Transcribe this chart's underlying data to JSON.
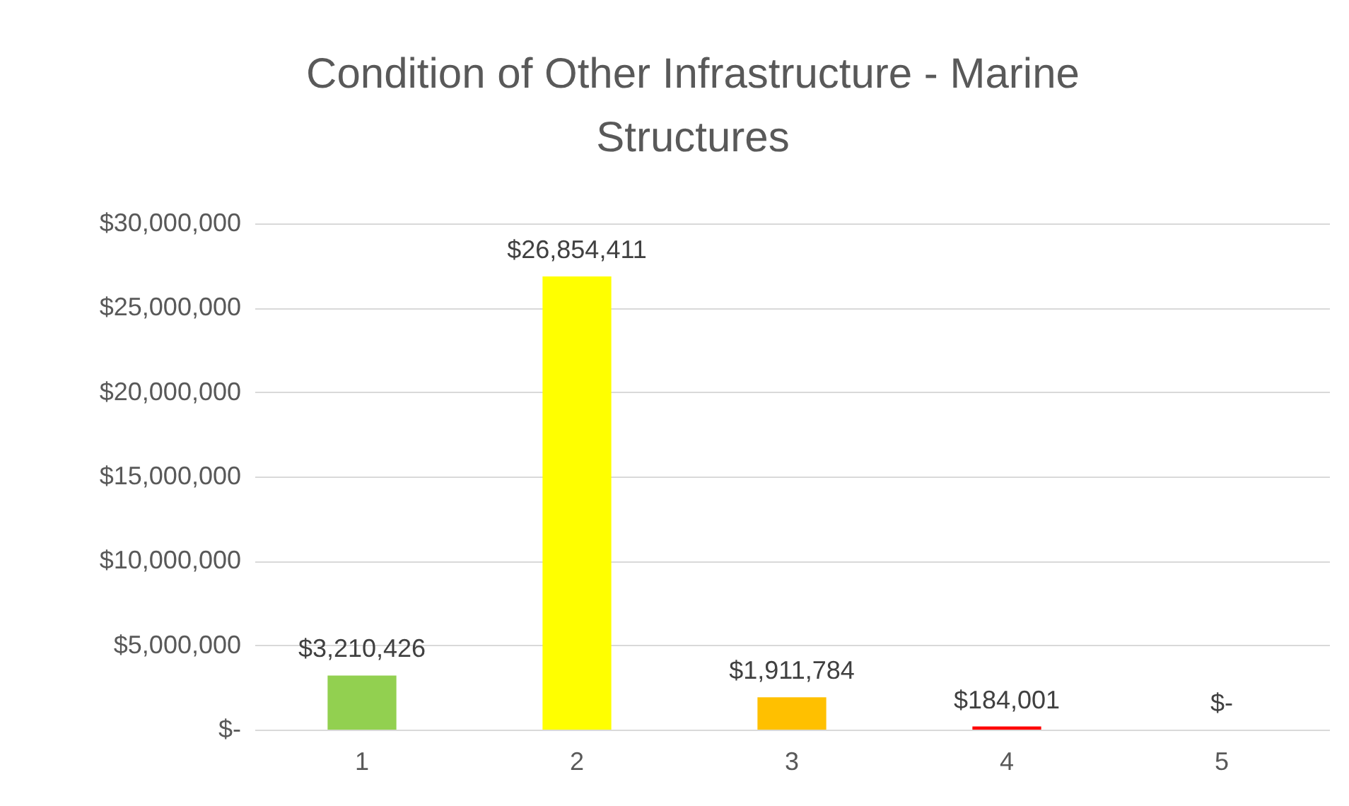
{
  "chart_data": {
    "type": "bar",
    "title": "Condition of Other Infrastructure - Marine Structures",
    "categories": [
      "1",
      "2",
      "3",
      "4",
      "5"
    ],
    "values": [
      3210426,
      26854411,
      1911784,
      184001,
      0
    ],
    "colors": [
      "#92d050",
      "#ffff00",
      "#ffc000",
      "#ff0000",
      "#c00000"
    ],
    "value_labels": [
      "$3,210,426",
      "$26,854,411",
      "$1,911,784",
      "$184,001",
      "$-"
    ],
    "ylim": [
      0,
      30000000
    ],
    "yticks": [
      {
        "value": 0,
        "label": "$-"
      },
      {
        "value": 5000000,
        "label": "$5,000,000"
      },
      {
        "value": 10000000,
        "label": "$10,000,000"
      },
      {
        "value": 15000000,
        "label": "$15,000,000"
      },
      {
        "value": 20000000,
        "label": "$20,000,000"
      },
      {
        "value": 25000000,
        "label": "$25,000,000"
      },
      {
        "value": 30000000,
        "label": "$30,000,000"
      }
    ],
    "grid": "y"
  }
}
